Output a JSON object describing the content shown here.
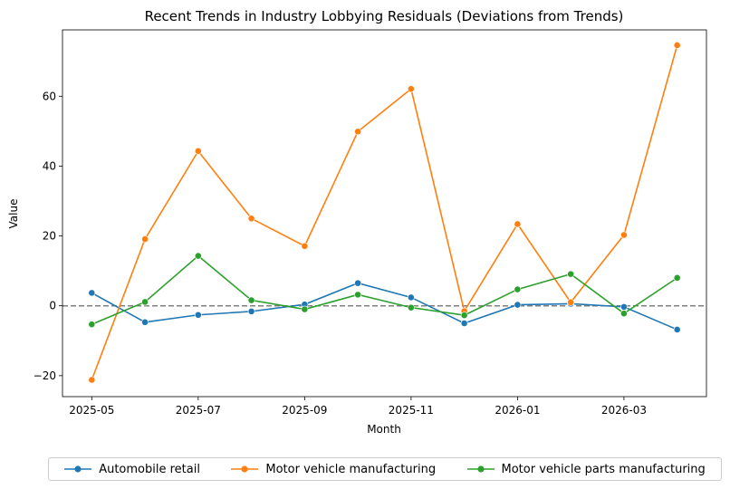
{
  "chart_data": {
    "type": "line",
    "title": "Recent Trends in Industry Lobbying Residuals (Deviations from Trends)",
    "xlabel": "Month",
    "ylabel": "Value",
    "x": [
      "2025-05",
      "2025-06",
      "2025-07",
      "2025-08",
      "2025-09",
      "2025-10",
      "2025-11",
      "2025-12",
      "2026-01",
      "2026-02",
      "2026-03",
      "2026-04"
    ],
    "x_ticks": [
      "2025-05",
      "2025-07",
      "2025-09",
      "2025-11",
      "2026-01",
      "2026-03"
    ],
    "y_ticks": [
      -20,
      0,
      20,
      40,
      60
    ],
    "y_tick_labels": [
      "−20",
      "0",
      "20",
      "40",
      "60"
    ],
    "ylim": [
      -26,
      79
    ],
    "reference_line": 0,
    "grid": false,
    "legend_position": "bottom",
    "series": [
      {
        "name": "Automobile retail",
        "color": "#1f77b4",
        "values": [
          3.7,
          -4.7,
          -2.6,
          -1.6,
          0.4,
          6.5,
          2.4,
          -5.0,
          0.3,
          0.6,
          -0.3,
          -6.8
        ]
      },
      {
        "name": "Motor vehicle manufacturing",
        "color": "#ff7f0e",
        "values": [
          -21.2,
          19.1,
          44.3,
          25.0,
          17.1,
          49.9,
          62.1,
          -1.5,
          23.4,
          1.0,
          20.3,
          74.6
        ]
      },
      {
        "name": "Motor vehicle parts manufacturing",
        "color": "#2ca02c",
        "values": [
          -5.3,
          1.1,
          14.3,
          1.6,
          -1.0,
          3.2,
          -0.5,
          -2.7,
          4.7,
          9.1,
          -2.2,
          8.0
        ]
      }
    ]
  }
}
